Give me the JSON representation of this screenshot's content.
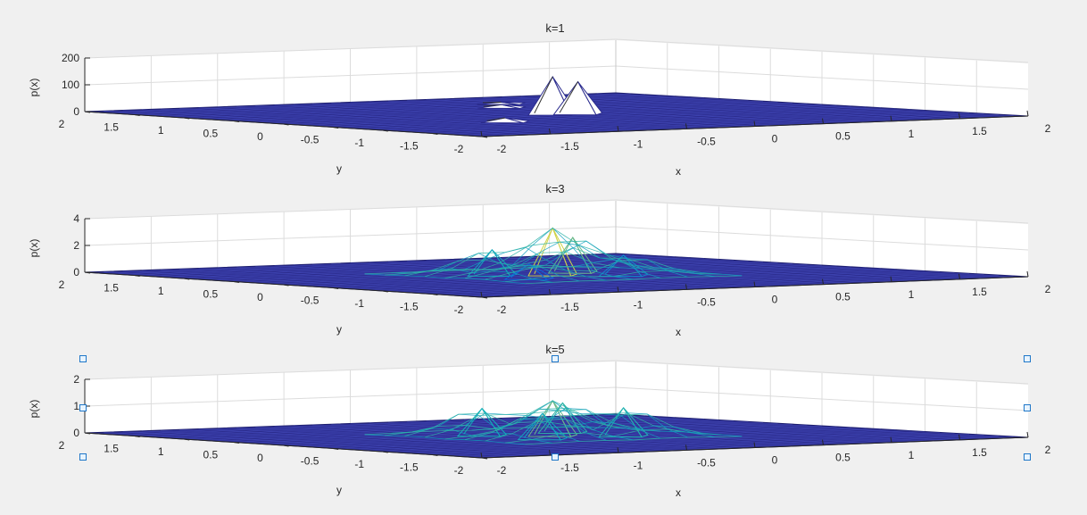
{
  "figure": {
    "background": "#f0f0f0",
    "axes_face": "#ffffff",
    "surface_color": "#2b2c8e",
    "grid_color": "#dcdcdc"
  },
  "chart_data": [
    {
      "type": "surface",
      "title": "k=1",
      "xlabel": "x",
      "ylabel": "y",
      "zlabel": "p(x)",
      "xlim": [
        -2,
        2
      ],
      "ylim": [
        -2,
        2
      ],
      "zlim": [
        0,
        200
      ],
      "x_ticks": [
        "-2",
        "-1.5",
        "-1",
        "-0.5",
        "0",
        "0.5",
        "1",
        "1.5",
        "2"
      ],
      "y_ticks": [
        "2",
        "1.5",
        "1",
        "0.5",
        "0",
        "-0.5",
        "-1",
        "-1.5",
        "-2"
      ],
      "z_ticks": [
        "0",
        "100",
        "200"
      ],
      "grid": true,
      "peaks": [
        {
          "x": 0,
          "y": 0,
          "z": 140
        },
        {
          "x": 0.15,
          "y": -0.05,
          "z": 120
        },
        {
          "x": 0.3,
          "y": 0.9,
          "z": 10
        },
        {
          "x": -0.8,
          "y": -0.6,
          "z": 15
        },
        {
          "x": 0.6,
          "y": 1.3,
          "z": 5
        }
      ],
      "selected": false
    },
    {
      "type": "surface",
      "title": "k=3",
      "xlabel": "x",
      "ylabel": "y",
      "zlabel": "p(x)",
      "xlim": [
        -2,
        2
      ],
      "ylim": [
        -2,
        2
      ],
      "zlim": [
        0,
        4
      ],
      "x_ticks": [
        "-2",
        "-1.5",
        "-1",
        "-0.5",
        "0",
        "0.5",
        "1",
        "1.5",
        "2"
      ],
      "y_ticks": [
        "2",
        "1.5",
        "1",
        "0.5",
        "0",
        "-0.5",
        "-1",
        "-1.5",
        "-2"
      ],
      "z_ticks": [
        "0",
        "2",
        "4"
      ],
      "grid": true,
      "peaks": [
        {
          "x": 0,
          "y": 0,
          "z": 3.5
        },
        {
          "x": 0.3,
          "y": 0.2,
          "z": 2.6
        },
        {
          "x": -0.3,
          "y": 0.2,
          "z": 1.9
        },
        {
          "x": 0.3,
          "y": -0.3,
          "z": 1.5
        },
        {
          "x": -0.4,
          "y": -0.3,
          "z": 1.1
        }
      ],
      "selected": false
    },
    {
      "type": "surface",
      "title": "k=5",
      "xlabel": "x",
      "ylabel": "y",
      "zlabel": "p(x)",
      "xlim": [
        -2,
        2
      ],
      "ylim": [
        -2,
        2
      ],
      "zlim": [
        0,
        2
      ],
      "x_ticks": [
        "-2",
        "-1.5",
        "-1",
        "-0.5",
        "0",
        "0.5",
        "1",
        "1.5",
        "2"
      ],
      "y_ticks": [
        "2",
        "1.5",
        "1",
        "0.5",
        "0",
        "-0.5",
        "-1",
        "-1.5",
        "-2"
      ],
      "z_ticks": [
        "0",
        "1",
        "2"
      ],
      "grid": true,
      "peaks": [
        {
          "x": 0,
          "y": 0,
          "z": 1.3
        },
        {
          "x": 0.3,
          "y": 0.3,
          "z": 1.1
        },
        {
          "x": -0.3,
          "y": 0.3,
          "z": 1.0
        },
        {
          "x": 0.3,
          "y": -0.3,
          "z": 1.05
        },
        {
          "x": -0.3,
          "y": -0.3,
          "z": 0.95
        }
      ],
      "selected": true
    }
  ]
}
